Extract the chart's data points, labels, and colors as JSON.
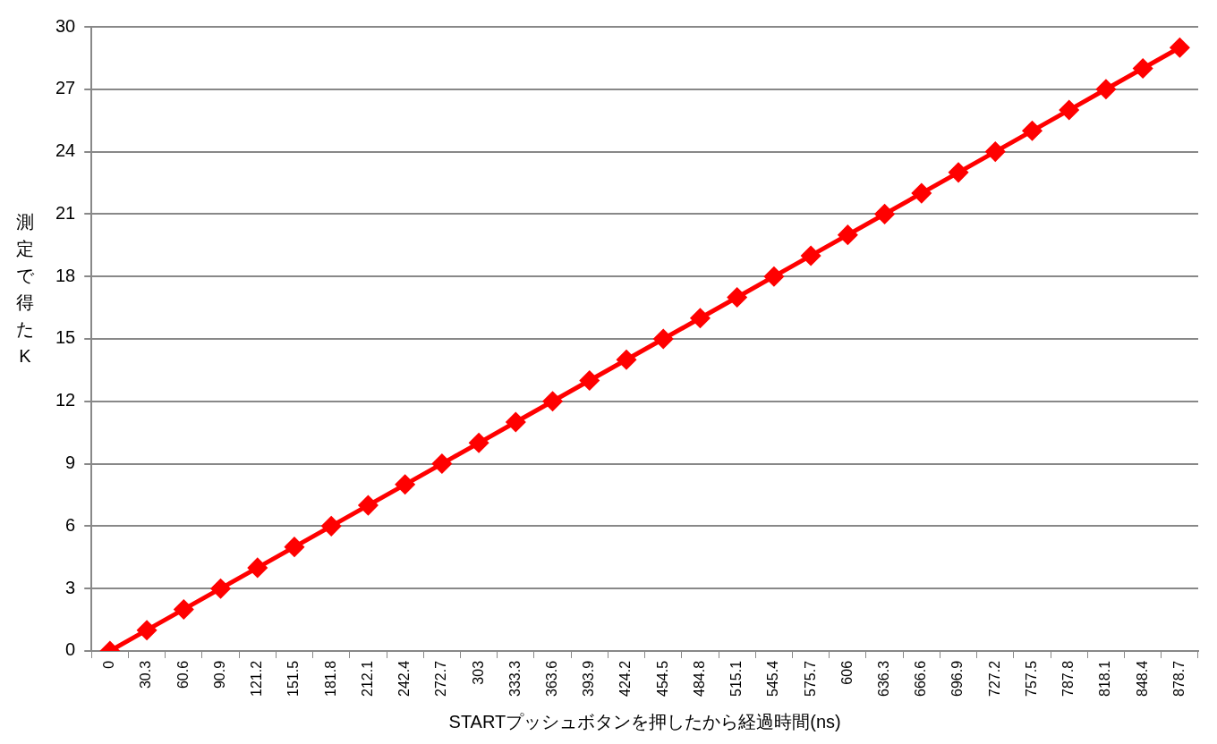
{
  "chart_data": {
    "type": "line",
    "xlabel": "STARTプッシュボタンを押したから経過時間(ns)",
    "ylabel": "測定で得たK",
    "categories": [
      "0",
      "30.3",
      "60.6",
      "90.9",
      "121.2",
      "151.5",
      "181.8",
      "212.1",
      "242.4",
      "272.7",
      "303",
      "333.3",
      "363.6",
      "393.9",
      "424.2",
      "454.5",
      "484.8",
      "515.1",
      "545.4",
      "575.7",
      "606",
      "636.3",
      "666.6",
      "696.9",
      "727.2",
      "757.5",
      "787.8",
      "818.1",
      "848.4",
      "878.7"
    ],
    "values": [
      0,
      1,
      2,
      3,
      4,
      5,
      6,
      7,
      8,
      9,
      10,
      11,
      12,
      13,
      14,
      15,
      16,
      17,
      18,
      19,
      20,
      21,
      22,
      23,
      24,
      25,
      26,
      27,
      28,
      29
    ],
    "color": "#ff0000",
    "ylim": [
      0,
      30
    ],
    "yticks": [
      0,
      3,
      6,
      9,
      12,
      15,
      18,
      21,
      24,
      27,
      30
    ],
    "grid": "y",
    "legend": false,
    "marker": "diamond",
    "line_style": "solid"
  }
}
